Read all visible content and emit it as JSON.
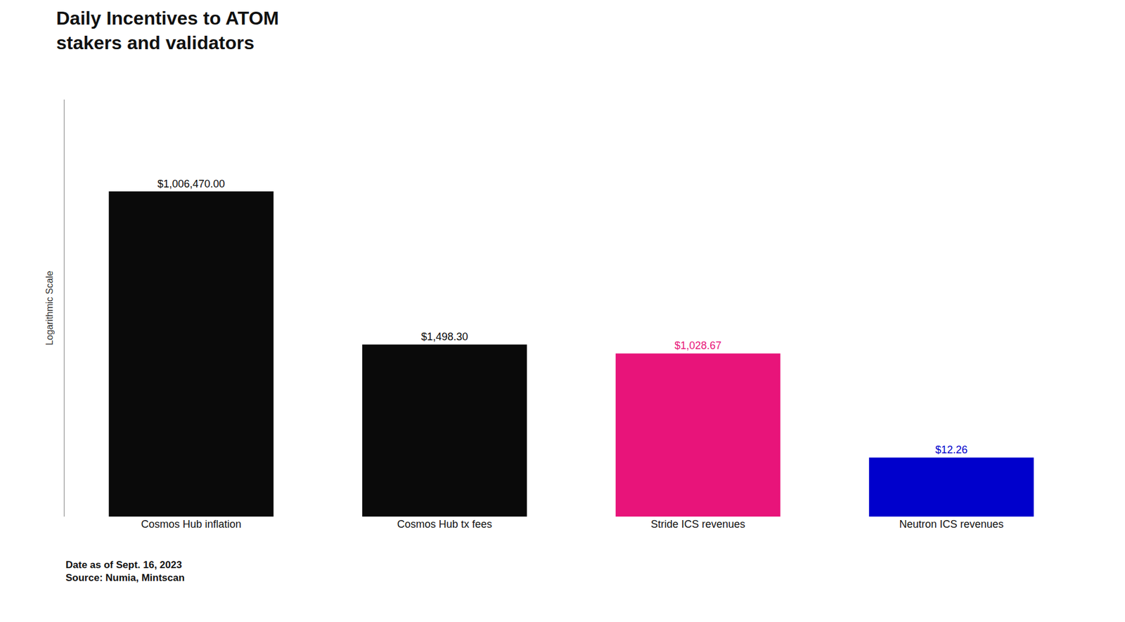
{
  "chart_data": {
    "type": "bar",
    "title": "Daily Incentives to ATOM\nstakers and validators",
    "categories": [
      "Cosmos Hub inflation",
      "Cosmos Hub tx fees",
      "Stride ICS revenues",
      "Neutron ICS revenues"
    ],
    "values": [
      1006470.0,
      1498.3,
      1028.67,
      12.26
    ],
    "value_labels": [
      "$1,006,470.00",
      "$1,498.30",
      "$1,028.67",
      "$12.26"
    ],
    "colors": [
      "#0a0a0a",
      "#0a0a0a",
      "#e8147a",
      "#0000cc"
    ],
    "ylabel": "Logarithmic Scale",
    "annotations": [
      "Date as of Sept. 16, 2023",
      "Source: Numia, Mintscan"
    ],
    "ylim": [
      1,
      50000000
    ],
    "log": "y",
    "tick_labels": "x",
    "grid": false,
    "data_labels": true
  }
}
